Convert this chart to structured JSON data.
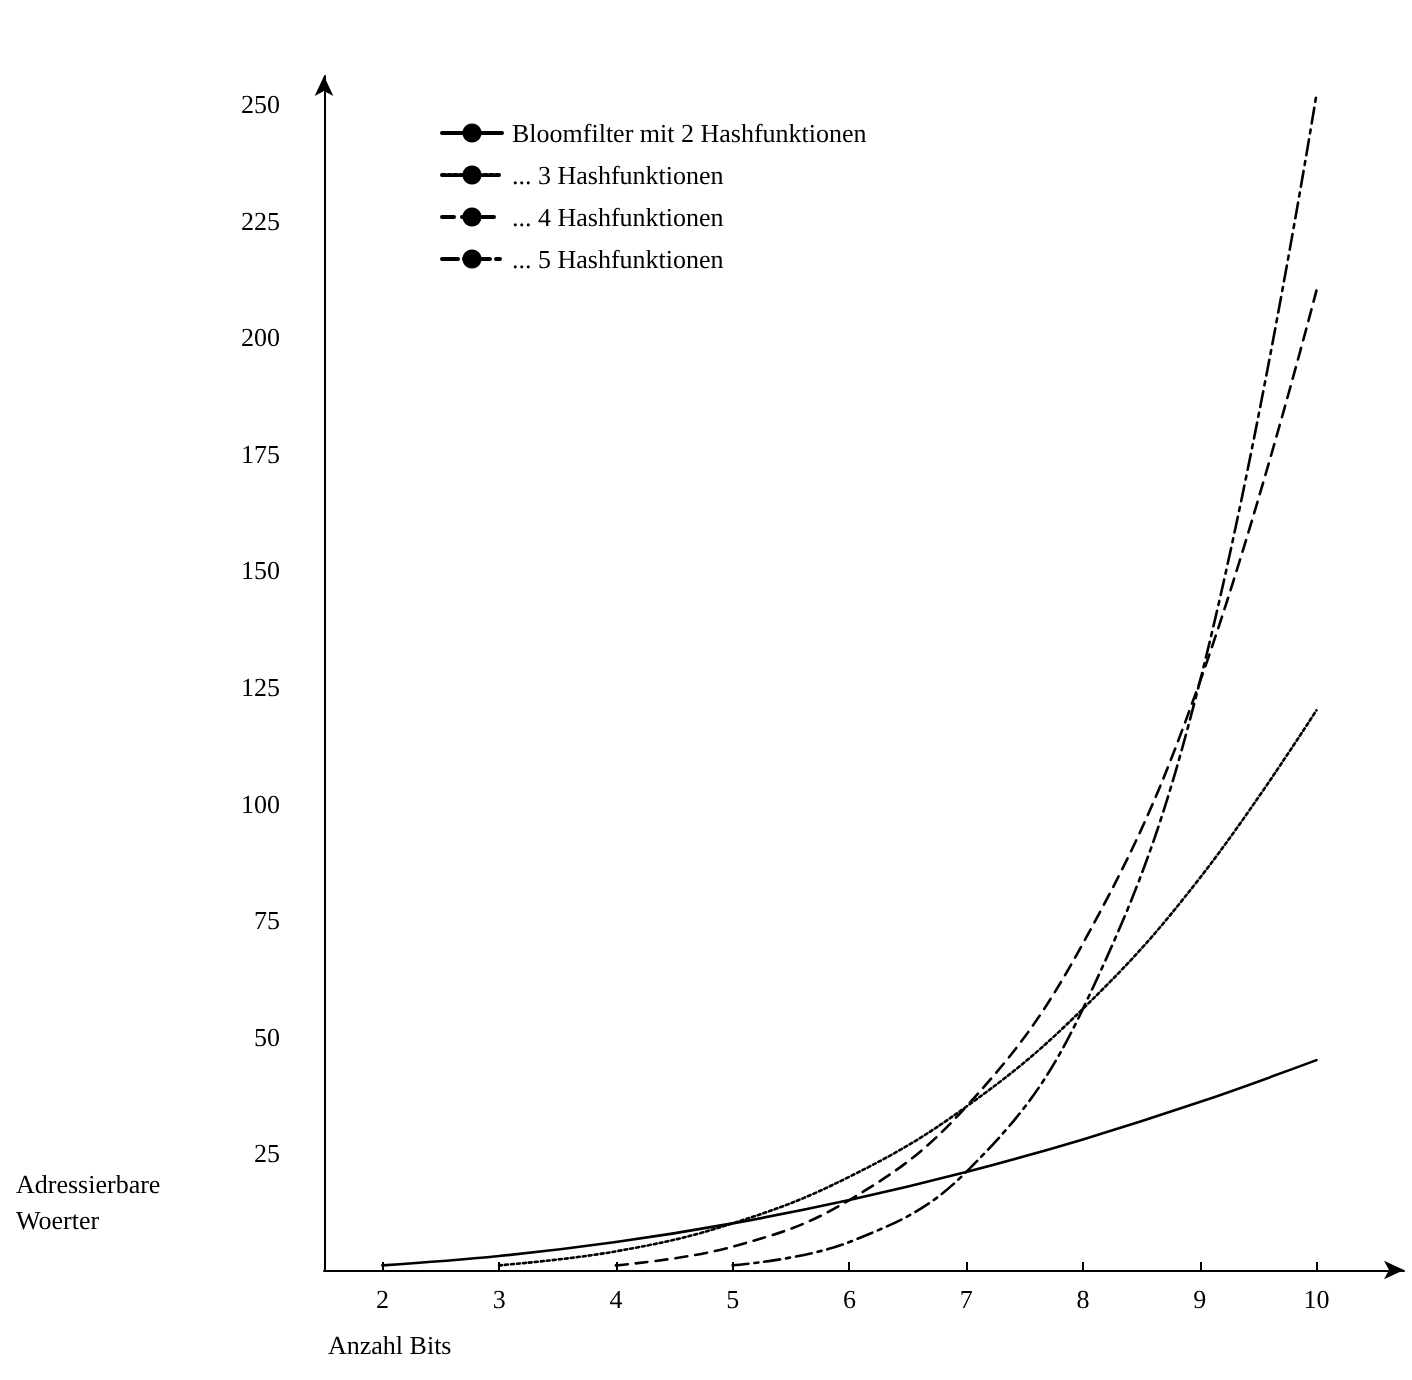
{
  "chart_data": {
    "type": "line",
    "xlabel": "Anzahl Bits",
    "ylabel": "Adressierbare Woerter",
    "series": [
      {
        "name": "Bloomfilter mit 2 Hashfunktionen",
        "color": "#000000",
        "line_style": "solid",
        "x": [
          2,
          3,
          4,
          5,
          6,
          7,
          8,
          9,
          10
        ],
        "values": [
          1,
          3,
          6,
          10,
          15,
          21,
          28,
          36,
          45
        ]
      },
      {
        "name": "... 3 Hashfunktionen",
        "color": "#000000",
        "line_style": "dotted",
        "x": [
          3,
          4,
          5,
          6,
          7,
          8,
          9,
          10
        ],
        "values": [
          1,
          4,
          10,
          20,
          35,
          56,
          84,
          120
        ]
      },
      {
        "name": "... 4 Hashfunktionen",
        "color": "#000000",
        "line_style": "dashed",
        "x": [
          4,
          5,
          6,
          7,
          8,
          9,
          10
        ],
        "values": [
          1,
          5,
          15,
          35,
          70,
          126,
          210
        ]
      },
      {
        "name": "... 5 Hashfunktionen",
        "color": "#000000",
        "line_style": "dashdot",
        "x": [
          5,
          6,
          7,
          8,
          9,
          10
        ],
        "values": [
          1,
          6,
          21,
          56,
          126,
          252
        ]
      }
    ],
    "xlim": [
      1.5,
      10.75
    ],
    "xticks": [
      2,
      3,
      4,
      5,
      6,
      7,
      8,
      9,
      10
    ],
    "ylim": [
      0,
      256
    ],
    "yticks": [
      25,
      50,
      75,
      100,
      125,
      150,
      175,
      200,
      225,
      250
    ],
    "grid": false,
    "legend": "top left",
    "marker": "none"
  }
}
